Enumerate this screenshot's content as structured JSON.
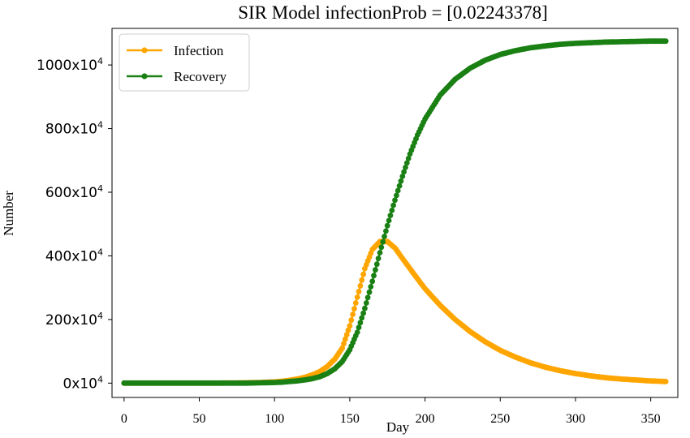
{
  "chart_data": {
    "type": "line",
    "title": "SIR Model infectionProb = [0.02243378]",
    "xlabel": "Day",
    "ylabel": "Number",
    "xlim": [
      -8,
      368
    ],
    "ylim": [
      -45,
      1115
    ],
    "xticks": [
      0,
      50,
      100,
      150,
      200,
      250,
      300,
      350
    ],
    "xtick_labels": [
      "0",
      "50",
      "100",
      "150",
      "200",
      "250",
      "300",
      "350"
    ],
    "yticks": [
      0,
      200,
      400,
      600,
      800,
      1000
    ],
    "ytick_labels": [
      "0x10",
      "200x10",
      "400x10",
      "600x10",
      "800x10",
      "1000x10"
    ],
    "ytick_exponent": "4",
    "legend_position": "top-left",
    "grid": false,
    "x": [
      0,
      20,
      40,
      60,
      80,
      90,
      100,
      105,
      110,
      115,
      120,
      125,
      130,
      135,
      140,
      145,
      150,
      155,
      160,
      165,
      170,
      175,
      180,
      185,
      190,
      195,
      200,
      210,
      220,
      230,
      240,
      250,
      260,
      270,
      280,
      290,
      300,
      310,
      320,
      330,
      340,
      350,
      360
    ],
    "series": [
      {
        "name": "Infection",
        "color": "#FFA500",
        "values": [
          0,
          0,
          0,
          0,
          1,
          2,
          4,
          6,
          9,
          13,
          18,
          26,
          36,
          52,
          75,
          110,
          180,
          270,
          360,
          420,
          445,
          445,
          425,
          392,
          360,
          328,
          297,
          245,
          200,
          162,
          130,
          103,
          82,
          64,
          50,
          39,
          30,
          23,
          17,
          13,
          10,
          7,
          5
        ]
      },
      {
        "name": "Recovery",
        "color": "#1A8014",
        "values": [
          0,
          0,
          0,
          0,
          0,
          1,
          2,
          3,
          5,
          7,
          10,
          14,
          20,
          30,
          45,
          68,
          105,
          160,
          235,
          320,
          410,
          495,
          575,
          650,
          720,
          780,
          830,
          905,
          955,
          990,
          1015,
          1033,
          1045,
          1054,
          1060,
          1065,
          1068,
          1070,
          1072,
          1073,
          1074,
          1075,
          1075
        ]
      }
    ]
  }
}
